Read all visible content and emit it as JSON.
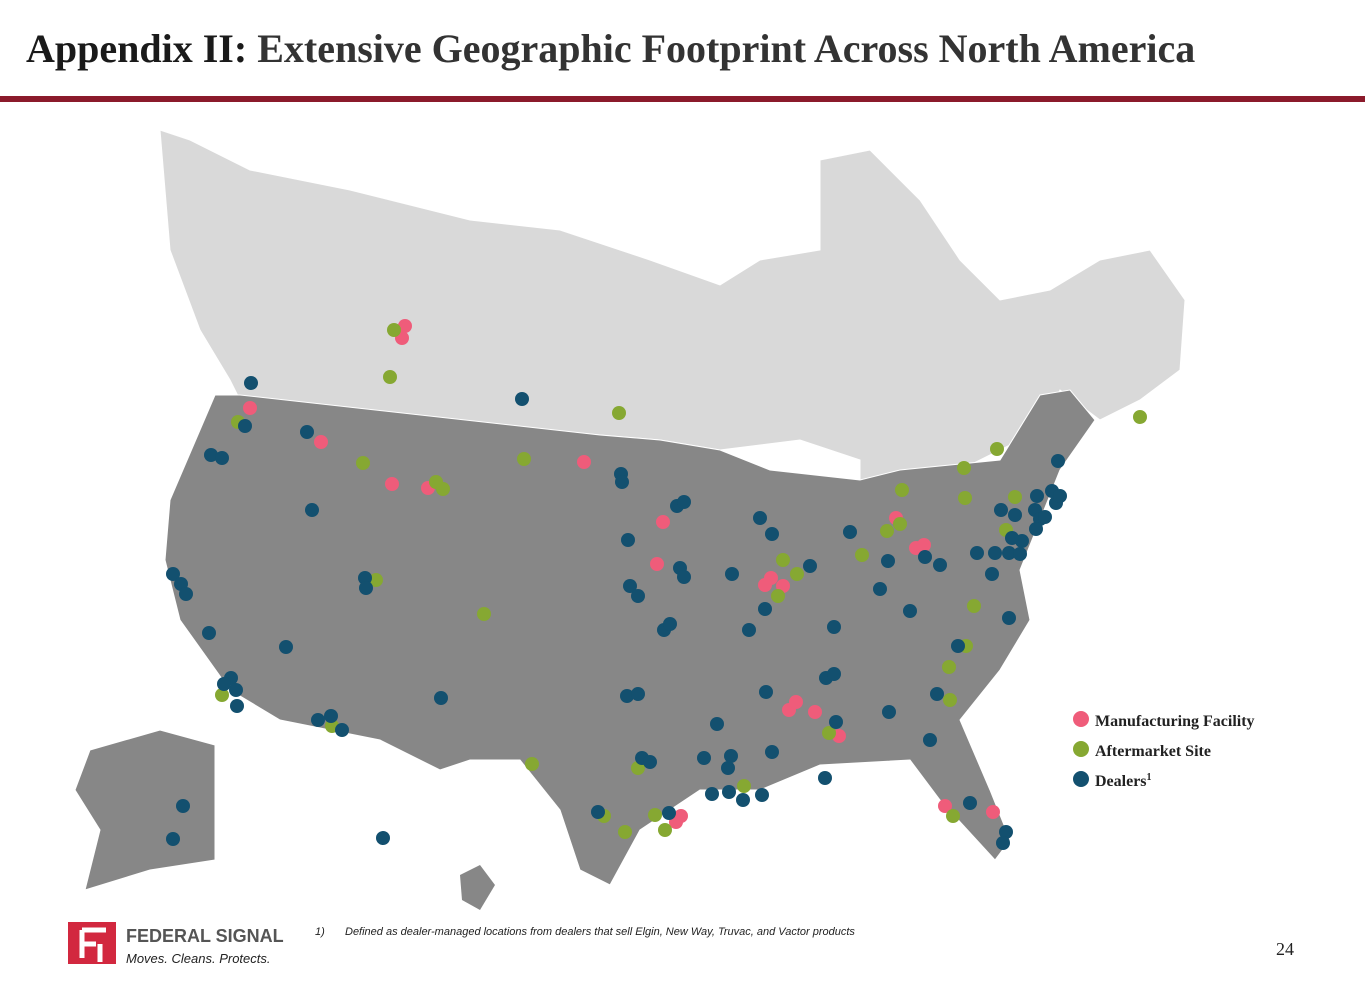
{
  "title": {
    "prefix": "Appendix II:",
    "text": "Extensive Geographic Footprint Across North America"
  },
  "legend": {
    "items": [
      "Manufacturing Facility",
      "Aftermarket Site",
      "Dealers"
    ],
    "dealers_note_marker": "1"
  },
  "footnote": {
    "marker": "1)",
    "text": "Defined as dealer-managed locations from dealers that sell Elgin, New Way, Truvac, and Vactor products"
  },
  "logo": {
    "name": "FEDERAL SIGNAL",
    "tagline": "Moves. Cleans. Protects."
  },
  "page_number": "24"
}
